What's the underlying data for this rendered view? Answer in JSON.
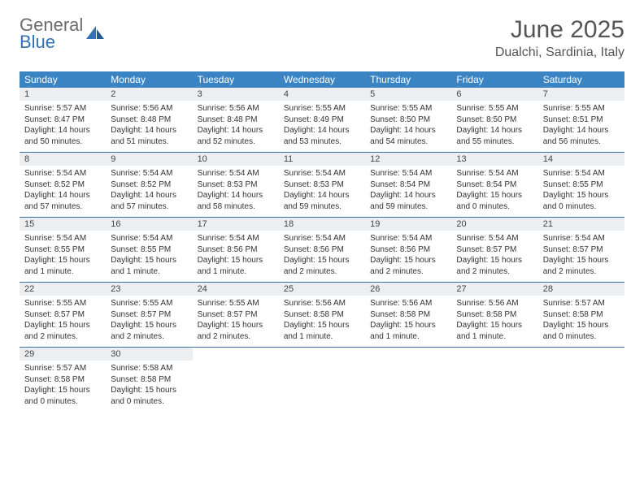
{
  "brand": {
    "general": "General",
    "blue": "Blue"
  },
  "title": "June 2025",
  "location": "Dualchi, Sardinia, Italy",
  "colors": {
    "header_bg": "#3b84c4",
    "header_text": "#ffffff",
    "daynum_bg": "#eceef0",
    "rule": "#3b6fa0",
    "title_text": "#555555",
    "body_text": "#333333",
    "logo_gray": "#6b6b6b",
    "logo_blue": "#2f73b6"
  },
  "day_headers": [
    "Sunday",
    "Monday",
    "Tuesday",
    "Wednesday",
    "Thursday",
    "Friday",
    "Saturday"
  ],
  "weeks": [
    [
      {
        "n": "1",
        "l1": "Sunrise: 5:57 AM",
        "l2": "Sunset: 8:47 PM",
        "l3": "Daylight: 14 hours",
        "l4": "and 50 minutes."
      },
      {
        "n": "2",
        "l1": "Sunrise: 5:56 AM",
        "l2": "Sunset: 8:48 PM",
        "l3": "Daylight: 14 hours",
        "l4": "and 51 minutes."
      },
      {
        "n": "3",
        "l1": "Sunrise: 5:56 AM",
        "l2": "Sunset: 8:48 PM",
        "l3": "Daylight: 14 hours",
        "l4": "and 52 minutes."
      },
      {
        "n": "4",
        "l1": "Sunrise: 5:55 AM",
        "l2": "Sunset: 8:49 PM",
        "l3": "Daylight: 14 hours",
        "l4": "and 53 minutes."
      },
      {
        "n": "5",
        "l1": "Sunrise: 5:55 AM",
        "l2": "Sunset: 8:50 PM",
        "l3": "Daylight: 14 hours",
        "l4": "and 54 minutes."
      },
      {
        "n": "6",
        "l1": "Sunrise: 5:55 AM",
        "l2": "Sunset: 8:50 PM",
        "l3": "Daylight: 14 hours",
        "l4": "and 55 minutes."
      },
      {
        "n": "7",
        "l1": "Sunrise: 5:55 AM",
        "l2": "Sunset: 8:51 PM",
        "l3": "Daylight: 14 hours",
        "l4": "and 56 minutes."
      }
    ],
    [
      {
        "n": "8",
        "l1": "Sunrise: 5:54 AM",
        "l2": "Sunset: 8:52 PM",
        "l3": "Daylight: 14 hours",
        "l4": "and 57 minutes."
      },
      {
        "n": "9",
        "l1": "Sunrise: 5:54 AM",
        "l2": "Sunset: 8:52 PM",
        "l3": "Daylight: 14 hours",
        "l4": "and 57 minutes."
      },
      {
        "n": "10",
        "l1": "Sunrise: 5:54 AM",
        "l2": "Sunset: 8:53 PM",
        "l3": "Daylight: 14 hours",
        "l4": "and 58 minutes."
      },
      {
        "n": "11",
        "l1": "Sunrise: 5:54 AM",
        "l2": "Sunset: 8:53 PM",
        "l3": "Daylight: 14 hours",
        "l4": "and 59 minutes."
      },
      {
        "n": "12",
        "l1": "Sunrise: 5:54 AM",
        "l2": "Sunset: 8:54 PM",
        "l3": "Daylight: 14 hours",
        "l4": "and 59 minutes."
      },
      {
        "n": "13",
        "l1": "Sunrise: 5:54 AM",
        "l2": "Sunset: 8:54 PM",
        "l3": "Daylight: 15 hours",
        "l4": "and 0 minutes."
      },
      {
        "n": "14",
        "l1": "Sunrise: 5:54 AM",
        "l2": "Sunset: 8:55 PM",
        "l3": "Daylight: 15 hours",
        "l4": "and 0 minutes."
      }
    ],
    [
      {
        "n": "15",
        "l1": "Sunrise: 5:54 AM",
        "l2": "Sunset: 8:55 PM",
        "l3": "Daylight: 15 hours",
        "l4": "and 1 minute."
      },
      {
        "n": "16",
        "l1": "Sunrise: 5:54 AM",
        "l2": "Sunset: 8:55 PM",
        "l3": "Daylight: 15 hours",
        "l4": "and 1 minute."
      },
      {
        "n": "17",
        "l1": "Sunrise: 5:54 AM",
        "l2": "Sunset: 8:56 PM",
        "l3": "Daylight: 15 hours",
        "l4": "and 1 minute."
      },
      {
        "n": "18",
        "l1": "Sunrise: 5:54 AM",
        "l2": "Sunset: 8:56 PM",
        "l3": "Daylight: 15 hours",
        "l4": "and 2 minutes."
      },
      {
        "n": "19",
        "l1": "Sunrise: 5:54 AM",
        "l2": "Sunset: 8:56 PM",
        "l3": "Daylight: 15 hours",
        "l4": "and 2 minutes."
      },
      {
        "n": "20",
        "l1": "Sunrise: 5:54 AM",
        "l2": "Sunset: 8:57 PM",
        "l3": "Daylight: 15 hours",
        "l4": "and 2 minutes."
      },
      {
        "n": "21",
        "l1": "Sunrise: 5:54 AM",
        "l2": "Sunset: 8:57 PM",
        "l3": "Daylight: 15 hours",
        "l4": "and 2 minutes."
      }
    ],
    [
      {
        "n": "22",
        "l1": "Sunrise: 5:55 AM",
        "l2": "Sunset: 8:57 PM",
        "l3": "Daylight: 15 hours",
        "l4": "and 2 minutes."
      },
      {
        "n": "23",
        "l1": "Sunrise: 5:55 AM",
        "l2": "Sunset: 8:57 PM",
        "l3": "Daylight: 15 hours",
        "l4": "and 2 minutes."
      },
      {
        "n": "24",
        "l1": "Sunrise: 5:55 AM",
        "l2": "Sunset: 8:57 PM",
        "l3": "Daylight: 15 hours",
        "l4": "and 2 minutes."
      },
      {
        "n": "25",
        "l1": "Sunrise: 5:56 AM",
        "l2": "Sunset: 8:58 PM",
        "l3": "Daylight: 15 hours",
        "l4": "and 1 minute."
      },
      {
        "n": "26",
        "l1": "Sunrise: 5:56 AM",
        "l2": "Sunset: 8:58 PM",
        "l3": "Daylight: 15 hours",
        "l4": "and 1 minute."
      },
      {
        "n": "27",
        "l1": "Sunrise: 5:56 AM",
        "l2": "Sunset: 8:58 PM",
        "l3": "Daylight: 15 hours",
        "l4": "and 1 minute."
      },
      {
        "n": "28",
        "l1": "Sunrise: 5:57 AM",
        "l2": "Sunset: 8:58 PM",
        "l3": "Daylight: 15 hours",
        "l4": "and 0 minutes."
      }
    ],
    [
      {
        "n": "29",
        "l1": "Sunrise: 5:57 AM",
        "l2": "Sunset: 8:58 PM",
        "l3": "Daylight: 15 hours",
        "l4": "and 0 minutes."
      },
      {
        "n": "30",
        "l1": "Sunrise: 5:58 AM",
        "l2": "Sunset: 8:58 PM",
        "l3": "Daylight: 15 hours",
        "l4": "and 0 minutes."
      },
      null,
      null,
      null,
      null,
      null
    ]
  ]
}
